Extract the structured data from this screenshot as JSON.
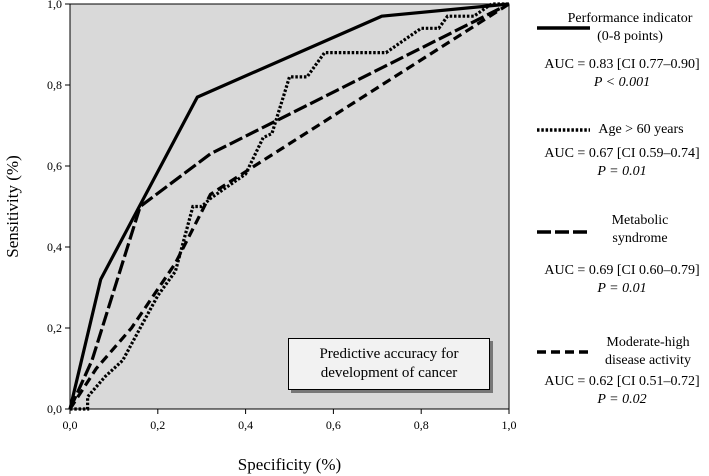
{
  "chart_data": {
    "type": "line",
    "xlabel": "Specificity (%)",
    "ylabel": "Sensitivity (%)",
    "xlim": [
      0,
      1
    ],
    "ylim": [
      0,
      1
    ],
    "x_ticks": [
      "0,0",
      "0,2",
      "0,4",
      "0,6",
      "0,8",
      "1,0"
    ],
    "y_ticks": [
      "0,0",
      "0,2",
      "0,4",
      "0,6",
      "0,8",
      "1,0"
    ],
    "background": "#d9d9d9",
    "series": [
      {
        "name": "Performance indicator (0-8 points)",
        "style": "solid",
        "auc": "AUC = 0.83 [CI 0.77–0.90]",
        "p": "P < 0.001",
        "x": [
          0.0,
          0.07,
          0.29,
          0.71,
          1.0
        ],
        "y": [
          0.0,
          0.32,
          0.77,
          0.97,
          1.0
        ]
      },
      {
        "name": "Age > 60 years",
        "style": "dotted",
        "auc": "AUC = 0.67 [CI 0.59–0.74]",
        "p": "P = 0.01",
        "x": [
          0.0,
          0.04,
          0.04,
          0.08,
          0.12,
          0.16,
          0.2,
          0.24,
          0.28,
          0.3,
          0.32,
          0.36,
          0.4,
          0.44,
          0.46,
          0.5,
          0.52,
          0.54,
          0.56,
          0.58,
          0.6,
          0.64,
          0.68,
          0.72,
          0.76,
          0.8,
          0.84,
          0.86,
          0.9,
          0.92,
          0.96,
          1.0
        ],
        "y": [
          0.0,
          0.0,
          0.03,
          0.08,
          0.12,
          0.2,
          0.28,
          0.34,
          0.5,
          0.5,
          0.52,
          0.55,
          0.58,
          0.67,
          0.68,
          0.82,
          0.82,
          0.82,
          0.85,
          0.88,
          0.88,
          0.88,
          0.88,
          0.88,
          0.91,
          0.94,
          0.94,
          0.97,
          0.97,
          0.97,
          1.0,
          1.0
        ]
      },
      {
        "name": "Metabolic syndrome",
        "style": "dash-long",
        "auc": "AUC = 0.69 [CI 0.60–0.79]",
        "p": "P = 0.01",
        "x": [
          0.0,
          0.05,
          0.16,
          0.32,
          1.0
        ],
        "y": [
          0.0,
          0.12,
          0.5,
          0.63,
          1.0
        ]
      },
      {
        "name": "Moderate-high disease activity",
        "style": "dash-heavy",
        "auc": "AUC = 0.62 [CI 0.51–0.72]",
        "p": "P = 0.02",
        "x": [
          0.0,
          0.06,
          0.14,
          0.24,
          0.32,
          0.42,
          1.0
        ],
        "y": [
          0.0,
          0.1,
          0.2,
          0.36,
          0.53,
          0.6,
          1.0
        ]
      }
    ]
  },
  "annotation": {
    "line1": "Predictive accuracy for",
    "line2": "development of cancer"
  }
}
